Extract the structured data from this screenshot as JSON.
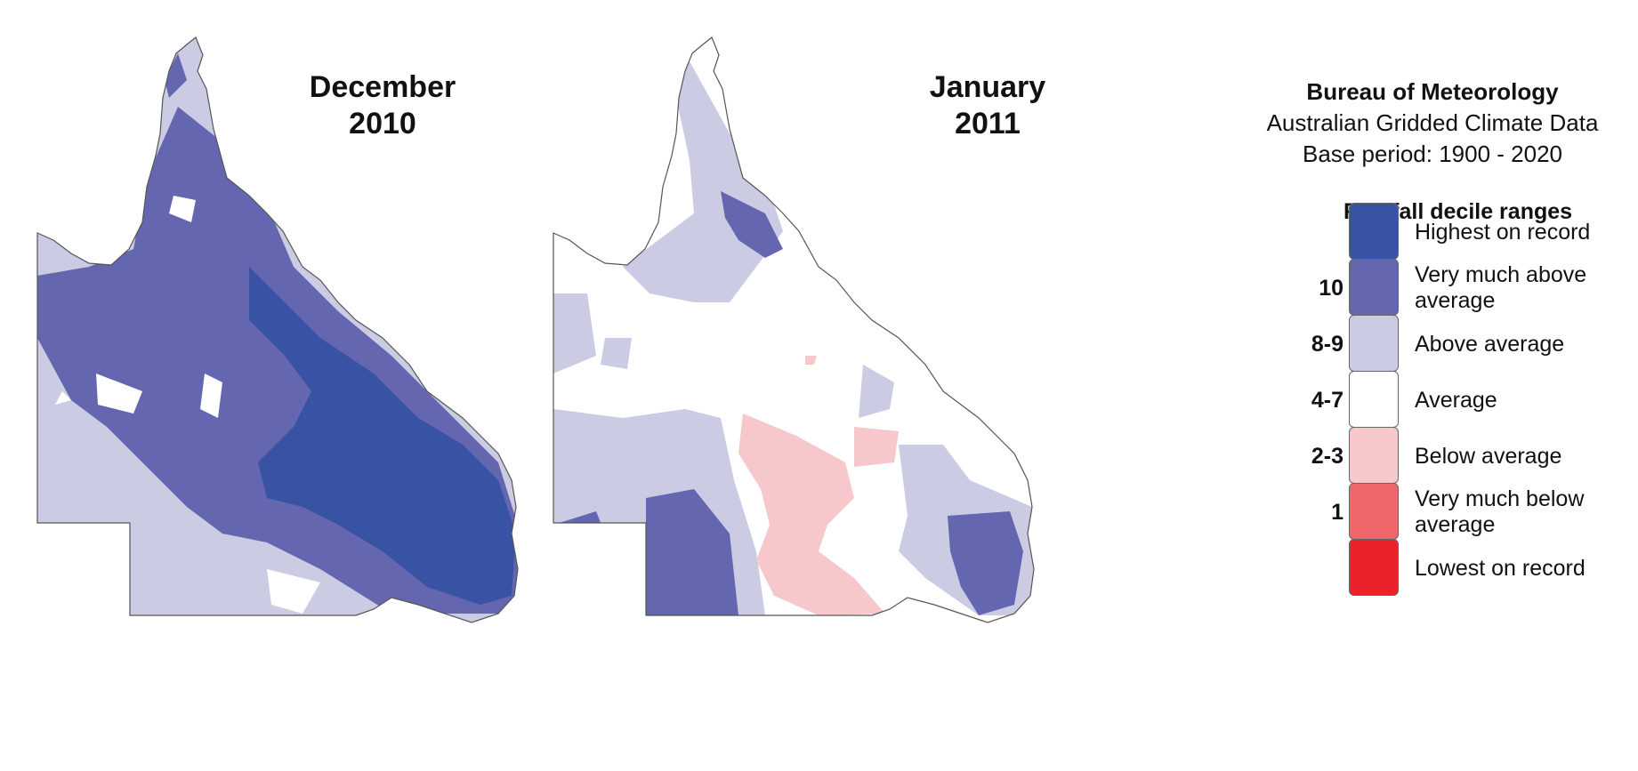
{
  "maps": [
    {
      "id": "dec",
      "title_line1": "December",
      "title_line2": "2010"
    },
    {
      "id": "jan",
      "title_line1": "January",
      "title_line2": "2011"
    }
  ],
  "source": {
    "org": "Bureau of Meteorology",
    "dataset": "Australian Gridded Climate Data",
    "base_period": "Base period: 1900 - 2020"
  },
  "legend": {
    "title": "Rainfall decile ranges",
    "items": [
      {
        "code": "",
        "label": "Highest on record",
        "color": "#3853a4"
      },
      {
        "code": "10",
        "label": "Very much above average",
        "color": "#6466b0"
      },
      {
        "code": "8-9",
        "label": "Above average",
        "color": "#cbcce4"
      },
      {
        "code": "4-7",
        "label": "Average",
        "color": "#ffffff"
      },
      {
        "code": "2-3",
        "label": "Below average",
        "color": "#f6c7cb"
      },
      {
        "code": "1",
        "label": "Very much below average",
        "color": "#ee656a"
      },
      {
        "code": "",
        "label": "Lowest on record",
        "color": "#ea2229"
      }
    ]
  }
}
